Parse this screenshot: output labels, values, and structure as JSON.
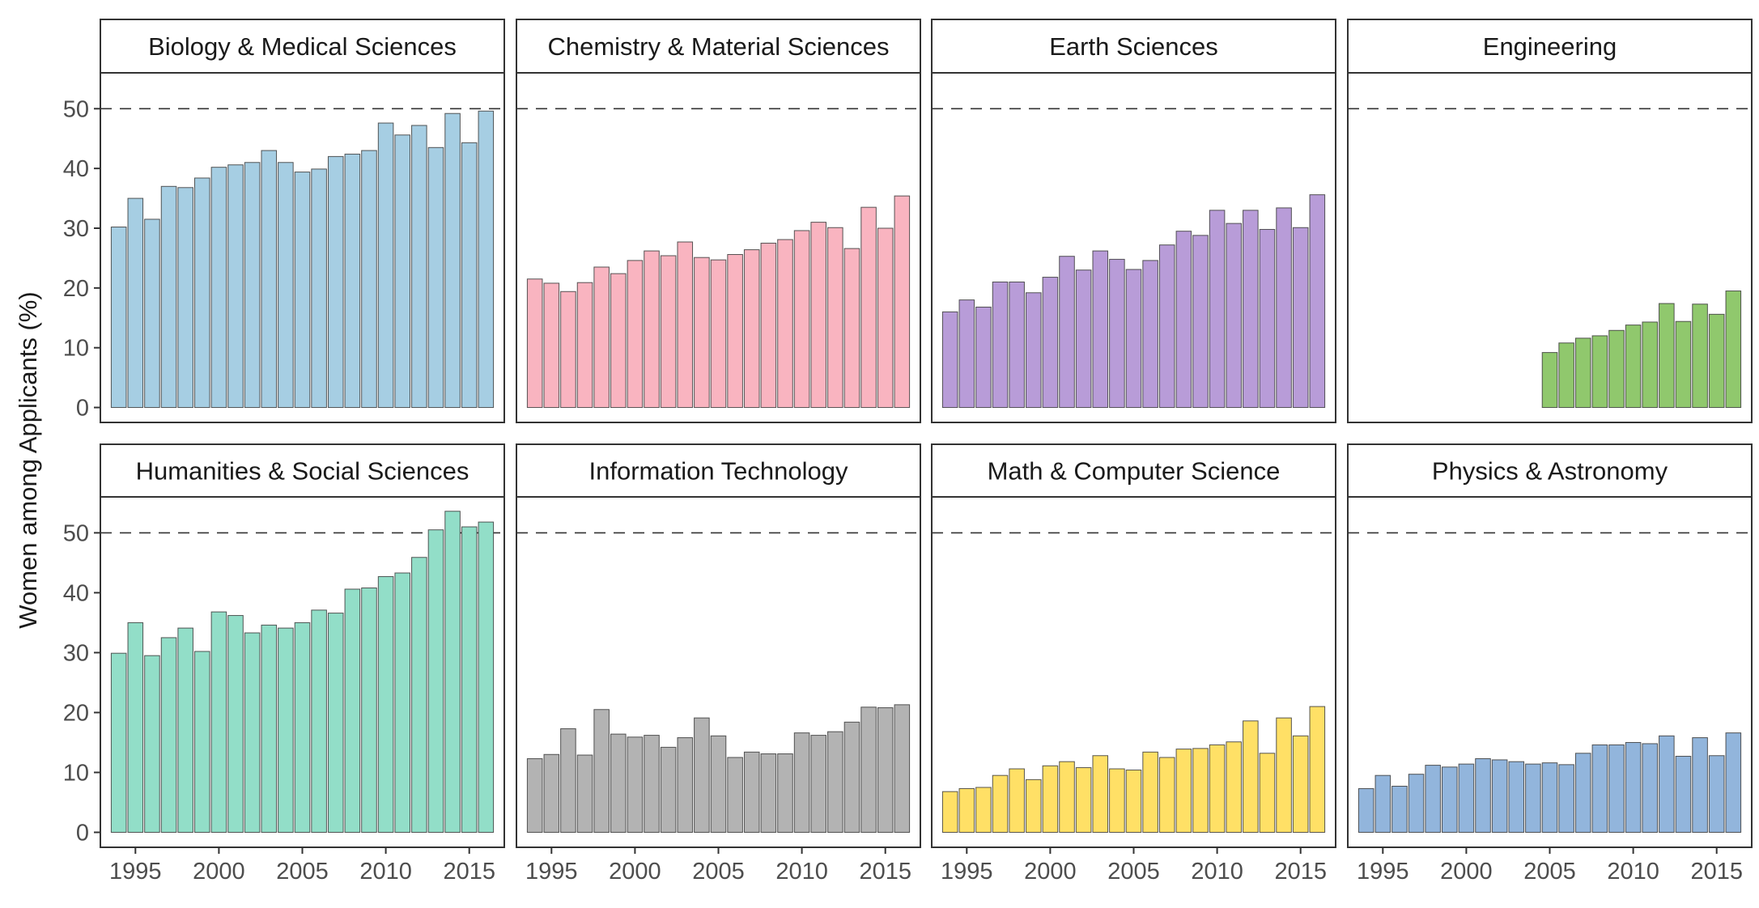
{
  "chart_data": {
    "type": "bar",
    "ylabel": "Women among Applicants (%)",
    "xlabel": "",
    "ylim": [
      -2.5,
      56
    ],
    "yticks": [
      0,
      10,
      20,
      30,
      40,
      50
    ],
    "xticks": [
      1995,
      2000,
      2005,
      2010,
      2015
    ],
    "reference_line": {
      "y": 50,
      "style": "dashed"
    },
    "layout": {
      "rows": 2,
      "cols": 4,
      "facet_strips": "top"
    },
    "panels": [
      {
        "name": "Biology & Medical Sciences",
        "color": "#A6CEE3",
        "years": [
          1994,
          1995,
          1996,
          1997,
          1998,
          1999,
          2000,
          2001,
          2002,
          2003,
          2004,
          2005,
          2006,
          2007,
          2008,
          2009,
          2010,
          2011,
          2012,
          2013,
          2014,
          2015,
          2016
        ],
        "values": [
          30.2,
          35.0,
          31.5,
          37.0,
          36.8,
          38.4,
          40.2,
          40.6,
          41.0,
          43.0,
          41.0,
          39.4,
          39.9,
          42.0,
          42.4,
          43.0,
          47.6,
          45.6,
          47.2,
          43.5,
          49.2,
          44.3,
          49.6
        ]
      },
      {
        "name": "Chemistry & Material Sciences",
        "color": "#F9B4C0",
        "years": [
          1994,
          1995,
          1996,
          1997,
          1998,
          1999,
          2000,
          2001,
          2002,
          2003,
          2004,
          2005,
          2006,
          2007,
          2008,
          2009,
          2010,
          2011,
          2012,
          2013,
          2014,
          2015,
          2016
        ],
        "values": [
          21.5,
          20.8,
          19.4,
          20.9,
          23.5,
          22.4,
          24.6,
          26.2,
          25.4,
          27.7,
          25.1,
          24.7,
          25.6,
          26.4,
          27.5,
          28.1,
          29.6,
          31.0,
          30.1,
          26.6,
          33.5,
          30.0,
          35.4
        ]
      },
      {
        "name": "Earth Sciences",
        "color": "#B89CD8",
        "years": [
          1994,
          1995,
          1996,
          1997,
          1998,
          1999,
          2000,
          2001,
          2002,
          2003,
          2004,
          2005,
          2006,
          2007,
          2008,
          2009,
          2010,
          2011,
          2012,
          2013,
          2014,
          2015,
          2016
        ],
        "values": [
          16.0,
          18.0,
          16.8,
          21.0,
          21.0,
          19.2,
          21.8,
          25.3,
          23.0,
          26.2,
          24.8,
          23.1,
          24.6,
          27.2,
          29.5,
          28.8,
          33.0,
          30.8,
          33.0,
          29.8,
          33.4,
          30.1,
          35.6
        ]
      },
      {
        "name": "Engineering",
        "color": "#90C86D",
        "years": [
          2005,
          2006,
          2007,
          2008,
          2009,
          2010,
          2011,
          2012,
          2013,
          2014,
          2015,
          2016
        ],
        "values": [
          9.2,
          10.8,
          11.6,
          12.0,
          12.9,
          13.8,
          14.3,
          17.4,
          14.4,
          17.3,
          15.6,
          19.5
        ]
      },
      {
        "name": "Humanities & Social Sciences",
        "color": "#92DEC8",
        "years": [
          1994,
          1995,
          1996,
          1997,
          1998,
          1999,
          2000,
          2001,
          2002,
          2003,
          2004,
          2005,
          2006,
          2007,
          2008,
          2009,
          2010,
          2011,
          2012,
          2013,
          2014,
          2015,
          2016
        ],
        "values": [
          29.9,
          35.0,
          29.5,
          32.5,
          34.1,
          30.2,
          36.8,
          36.2,
          33.3,
          34.6,
          34.1,
          35.0,
          37.1,
          36.6,
          40.6,
          40.8,
          42.7,
          43.3,
          45.9,
          50.5,
          53.6,
          51.0,
          51.8
        ]
      },
      {
        "name": "Information Technology",
        "color": "#B3B3B3",
        "years": [
          1994,
          1995,
          1996,
          1997,
          1998,
          1999,
          2000,
          2001,
          2002,
          2003,
          2004,
          2005,
          2006,
          2007,
          2008,
          2009,
          2010,
          2011,
          2012,
          2013,
          2014,
          2015,
          2016
        ],
        "values": [
          12.3,
          13.0,
          17.3,
          12.9,
          20.5,
          16.4,
          15.9,
          16.2,
          14.2,
          15.8,
          19.1,
          16.1,
          12.5,
          13.4,
          13.1,
          13.1,
          16.6,
          16.2,
          16.8,
          18.4,
          20.9,
          20.8,
          21.3
        ]
      },
      {
        "name": "Math & Computer Science",
        "color": "#FFE066",
        "years": [
          1994,
          1995,
          1996,
          1997,
          1998,
          1999,
          2000,
          2001,
          2002,
          2003,
          2004,
          2005,
          2006,
          2007,
          2008,
          2009,
          2010,
          2011,
          2012,
          2013,
          2014,
          2015,
          2016
        ],
        "values": [
          6.8,
          7.3,
          7.5,
          9.5,
          10.6,
          8.8,
          11.1,
          11.8,
          10.8,
          12.8,
          10.6,
          10.4,
          13.4,
          12.5,
          13.9,
          14.0,
          14.6,
          15.1,
          18.6,
          13.2,
          19.1,
          16.1,
          21.0
        ]
      },
      {
        "name": "Physics & Astronomy",
        "color": "#92B5DC",
        "years": [
          1994,
          1995,
          1996,
          1997,
          1998,
          1999,
          2000,
          2001,
          2002,
          2003,
          2004,
          2005,
          2006,
          2007,
          2008,
          2009,
          2010,
          2011,
          2012,
          2013,
          2014,
          2015,
          2016
        ],
        "values": [
          7.3,
          9.5,
          7.7,
          9.7,
          11.2,
          10.9,
          11.4,
          12.3,
          12.1,
          11.8,
          11.4,
          11.6,
          11.3,
          13.2,
          14.6,
          14.6,
          15.0,
          14.8,
          16.1,
          12.7,
          15.8,
          12.8,
          16.6
        ]
      }
    ]
  }
}
